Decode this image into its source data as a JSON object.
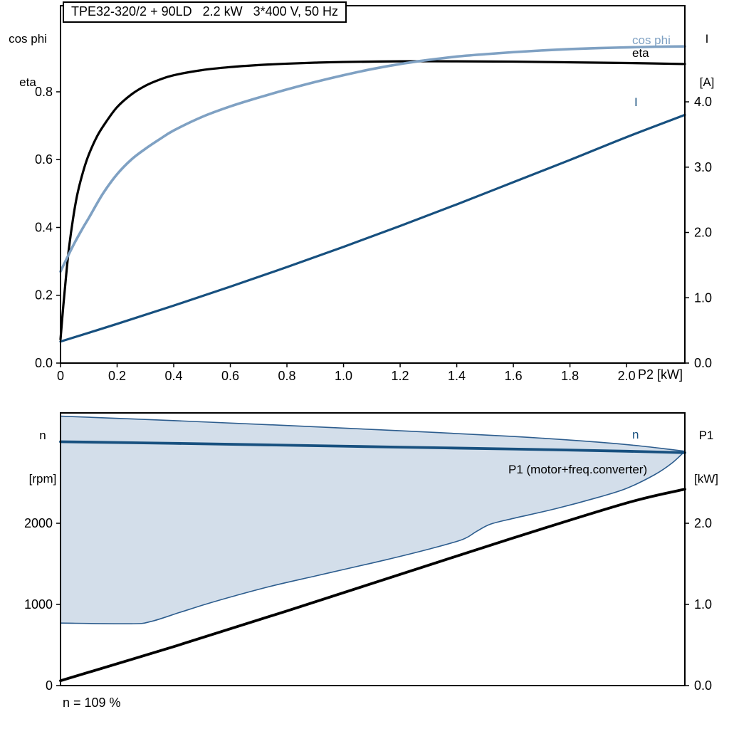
{
  "colors": {
    "black": "#000000",
    "dark_blue": "#17507f",
    "light_blue": "#7fa1c3",
    "envelope_fill": "#d3deea",
    "envelope_stroke": "#2d5d8e"
  },
  "chart_data": [
    {
      "type": "line",
      "title": "TPE32-320/2 + 90LD   2.2 kW   3*400 V, 50 Hz",
      "x_axis": {
        "label": "P2 [kW]",
        "min": 0,
        "max": 2.206,
        "ticks": [
          0,
          0.2,
          0.4,
          0.6,
          0.8,
          1.0,
          1.2,
          1.4,
          1.6,
          1.8,
          2.0
        ],
        "tick_labels": [
          "0",
          "0.2",
          "0.4",
          "0.6",
          "0.8",
          "1.0",
          "1.2",
          "1.4",
          "1.6",
          "1.8",
          "2.0"
        ]
      },
      "y_axis": {
        "label_lines": [
          "cos phi",
          "eta"
        ],
        "min": 0,
        "max": 1.054,
        "ticks": [
          0,
          0.2,
          0.4,
          0.6,
          0.8
        ],
        "tick_labels": [
          "0.0",
          "0.2",
          "0.4",
          "0.6",
          "0.8"
        ]
      },
      "y2_axis": {
        "label_lines": [
          "I",
          "[A]"
        ],
        "min": 0,
        "max": 5.472,
        "ticks": [
          0,
          1,
          2,
          3,
          4
        ],
        "tick_labels": [
          "0.0",
          "1.0",
          "2.0",
          "3.0",
          "4.0"
        ]
      },
      "series": [
        {
          "name": "eta",
          "label": "eta",
          "axis": "y",
          "color": "#000000",
          "width": 3.2,
          "points": [
            [
              0,
              0.07
            ],
            [
              0.01,
              0.17
            ],
            [
              0.02,
              0.26
            ],
            [
              0.03,
              0.34
            ],
            [
              0.045,
              0.43
            ],
            [
              0.06,
              0.5
            ],
            [
              0.08,
              0.565
            ],
            [
              0.1,
              0.615
            ],
            [
              0.13,
              0.67
            ],
            [
              0.16,
              0.71
            ],
            [
              0.2,
              0.755
            ],
            [
              0.25,
              0.792
            ],
            [
              0.3,
              0.818
            ],
            [
              0.35,
              0.836
            ],
            [
              0.4,
              0.849
            ],
            [
              0.5,
              0.864
            ],
            [
              0.6,
              0.873
            ],
            [
              0.7,
              0.879
            ],
            [
              0.8,
              0.883
            ],
            [
              0.9,
              0.886
            ],
            [
              1.0,
              0.888
            ],
            [
              1.2,
              0.89
            ],
            [
              1.4,
              0.89
            ],
            [
              1.6,
              0.889
            ],
            [
              1.8,
              0.887
            ],
            [
              2.0,
              0.885
            ],
            [
              2.206,
              0.882
            ]
          ]
        },
        {
          "name": "cos-phi",
          "label": "cos phi",
          "axis": "y",
          "color": "#7fa1c3",
          "width": 3.6,
          "points": [
            [
              0,
              0.27
            ],
            [
              0.02,
              0.305
            ],
            [
              0.05,
              0.355
            ],
            [
              0.08,
              0.4
            ],
            [
              0.1,
              0.428
            ],
            [
              0.15,
              0.5
            ],
            [
              0.2,
              0.557
            ],
            [
              0.25,
              0.6
            ],
            [
              0.3,
              0.632
            ],
            [
              0.35,
              0.66
            ],
            [
              0.4,
              0.686
            ],
            [
              0.5,
              0.726
            ],
            [
              0.6,
              0.757
            ],
            [
              0.7,
              0.783
            ],
            [
              0.8,
              0.807
            ],
            [
              0.9,
              0.829
            ],
            [
              1.0,
              0.849
            ],
            [
              1.1,
              0.867
            ],
            [
              1.2,
              0.882
            ],
            [
              1.3,
              0.894
            ],
            [
              1.4,
              0.904
            ],
            [
              1.5,
              0.911
            ],
            [
              1.6,
              0.917
            ],
            [
              1.7,
              0.922
            ],
            [
              1.8,
              0.926
            ],
            [
              1.9,
              0.929
            ],
            [
              2.0,
              0.931
            ],
            [
              2.1,
              0.933
            ],
            [
              2.206,
              0.934
            ]
          ]
        },
        {
          "name": "current",
          "label": "I",
          "axis": "y2",
          "color": "#17507f",
          "width": 3.2,
          "points": [
            [
              0,
              0.33
            ],
            [
              0.2,
              0.6
            ],
            [
              0.4,
              0.88
            ],
            [
              0.6,
              1.17
            ],
            [
              0.8,
              1.47
            ],
            [
              1.0,
              1.78
            ],
            [
              1.2,
              2.1
            ],
            [
              1.4,
              2.43
            ],
            [
              1.6,
              2.77
            ],
            [
              1.8,
              3.11
            ],
            [
              2.0,
              3.46
            ],
            [
              2.206,
              3.8
            ]
          ]
        }
      ]
    },
    {
      "type": "line",
      "annotation": "n = 109 %",
      "x_axis": {
        "label": "",
        "min": 0,
        "max": 2.206,
        "ticks": [],
        "tick_labels": []
      },
      "y_axis": {
        "label_lines": [
          "n",
          "[rpm]"
        ],
        "min": 0,
        "max": 3360,
        "ticks": [
          0,
          1000,
          2000
        ],
        "tick_labels": [
          "0",
          "1000",
          "2000"
        ]
      },
      "y2_axis": {
        "label_lines": [
          "P1",
          "[kW]"
        ],
        "min": 0,
        "max": 3.36,
        "ticks": [
          0,
          1,
          2
        ],
        "tick_labels": [
          "0.0",
          "1.0",
          "2.0"
        ]
      },
      "areas": [
        {
          "name": "speed-control-range",
          "fill": "#d3deea",
          "stroke": "#2d5d8e",
          "stroke_width": 1.6,
          "upper": [
            [
              0,
              3320
            ],
            [
              0.4,
              3265
            ],
            [
              0.8,
              3205
            ],
            [
              1.2,
              3140
            ],
            [
              1.6,
              3070
            ],
            [
              1.9,
              3000
            ],
            [
              2.05,
              2952
            ],
            [
              2.15,
              2912
            ],
            [
              2.206,
              2888
            ]
          ],
          "lower": [
            [
              0,
              770
            ],
            [
              0.25,
              762
            ],
            [
              0.32,
              790
            ],
            [
              0.42,
              900
            ],
            [
              0.52,
              1010
            ],
            [
              0.62,
              1110
            ],
            [
              0.75,
              1230
            ],
            [
              0.9,
              1350
            ],
            [
              1.0,
              1430
            ],
            [
              1.15,
              1550
            ],
            [
              1.3,
              1680
            ],
            [
              1.42,
              1800
            ],
            [
              1.47,
              1900
            ],
            [
              1.52,
              1990
            ],
            [
              1.6,
              2060
            ],
            [
              1.75,
              2180
            ],
            [
              1.9,
              2320
            ],
            [
              2.0,
              2430
            ],
            [
              2.1,
              2600
            ],
            [
              2.16,
              2740
            ],
            [
              2.206,
              2888
            ]
          ]
        }
      ],
      "series": [
        {
          "name": "n",
          "label": "n",
          "axis": "y",
          "color": "#17507f",
          "width": 3.8,
          "points": [
            [
              0,
              3005
            ],
            [
              0.4,
              2985
            ],
            [
              0.8,
              2962
            ],
            [
              1.2,
              2938
            ],
            [
              1.6,
              2915
            ],
            [
              2.0,
              2888
            ],
            [
              2.206,
              2870
            ]
          ]
        },
        {
          "name": "p1",
          "label": "P1 (motor+freq.converter)",
          "axis": "y2",
          "color": "#000000",
          "width": 3.8,
          "points": [
            [
              0,
              0.06
            ],
            [
              0.4,
              0.48
            ],
            [
              0.8,
              0.92
            ],
            [
              1.2,
              1.37
            ],
            [
              1.6,
              1.82
            ],
            [
              2.0,
              2.25
            ],
            [
              2.206,
              2.42
            ]
          ]
        }
      ]
    }
  ]
}
